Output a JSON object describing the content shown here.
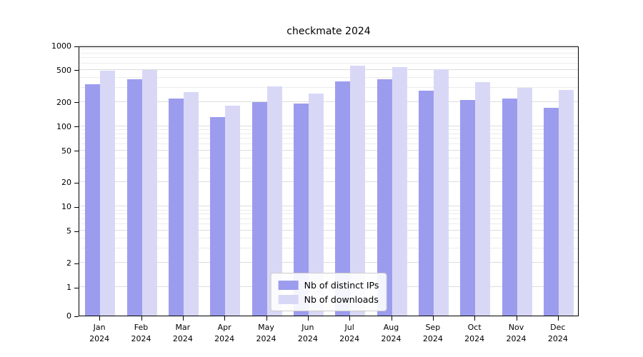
{
  "title": "checkmate 2024",
  "chart_data": {
    "type": "bar",
    "title": "checkmate 2024",
    "categories": [
      "Jan 2024",
      "Feb 2024",
      "Mar 2024",
      "Apr 2024",
      "May 2024",
      "Jun 2024",
      "Jul 2024",
      "Aug 2024",
      "Sep 2024",
      "Oct 2024",
      "Nov 2024",
      "Dec 2024"
    ],
    "series": [
      {
        "name": "Nb of distinct IPs",
        "color": "#9c9cee",
        "values": [
          330,
          380,
          220,
          130,
          200,
          190,
          360,
          380,
          275,
          210,
          220,
          170
        ]
      },
      {
        "name": "Nb of downloads",
        "color": "#d8d8f6",
        "values": [
          490,
          500,
          265,
          180,
          310,
          255,
          570,
          545,
          510,
          355,
          300,
          280
        ]
      }
    ],
    "xlabel": "",
    "ylabel": "",
    "yscale": "symlog",
    "ylim": [
      0,
      1000
    ],
    "yticks": [
      0,
      1,
      2,
      5,
      10,
      20,
      50,
      100,
      200,
      500,
      1000
    ],
    "grid": true,
    "legend_position": "lower center",
    "colors": {
      "major_grid": "#dddddd",
      "minor_grid": "#ebebeb",
      "axis": "#000000"
    }
  }
}
